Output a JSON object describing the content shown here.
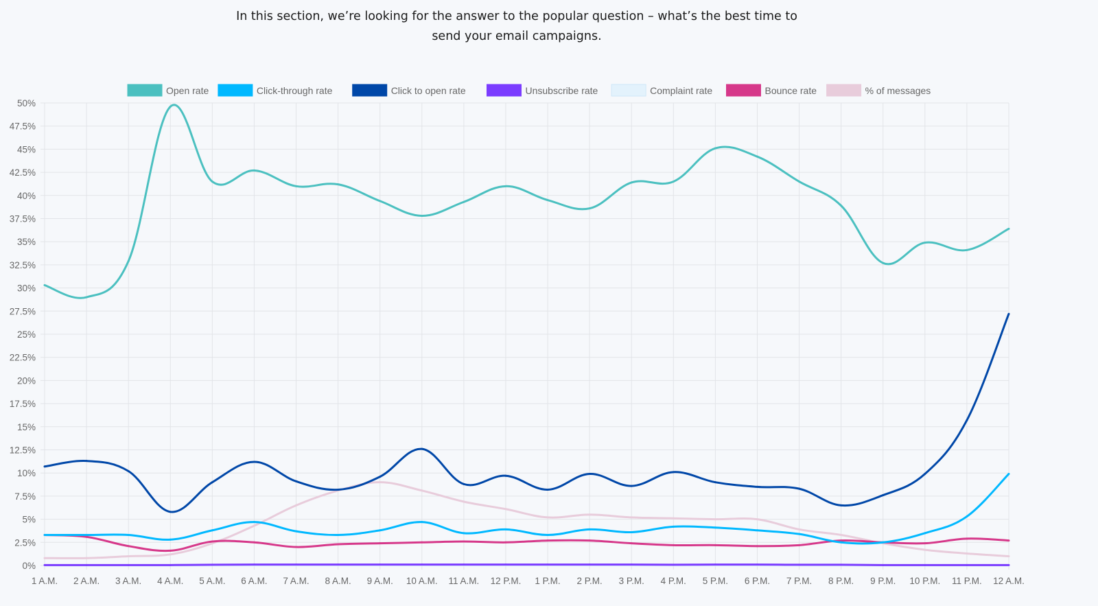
{
  "intro": {
    "line1": "In this section, we’re looking for the answer to the popular question – what’s the best time to",
    "line2": "send your email campaigns."
  },
  "chart_data": {
    "type": "line",
    "title": "",
    "xlabel": "",
    "ylabel": "",
    "ylim": [
      0,
      50
    ],
    "grid": true,
    "legend_position": "top-center",
    "yticks": [
      "0%",
      "2.5%",
      "5%",
      "7.5%",
      "10%",
      "12.5%",
      "15%",
      "17.5%",
      "20%",
      "22.5%",
      "25%",
      "27.5%",
      "30%",
      "32.5%",
      "35%",
      "37.5%",
      "40%",
      "42.5%",
      "45%",
      "47.5%",
      "50%"
    ],
    "x": [
      "1 A.M.",
      "2 A.M.",
      "3 A.M.",
      "4 A.M.",
      "5 A.M.",
      "6 A.M.",
      "7 A.M.",
      "8 A.M.",
      "9 A.M.",
      "10 A.M.",
      "11 A.M.",
      "12 P.M.",
      "1 P.M.",
      "2 P.M.",
      "3 P.M.",
      "4 P.M.",
      "5 P.M.",
      "6 P.M.",
      "7 P.M.",
      "8 P.M.",
      "9 P.M.",
      "10 P.M.",
      "11 P.M.",
      "12 A.M."
    ],
    "series": [
      {
        "name": "Open rate",
        "color": "#4bc0c0",
        "values": [
          30.3,
          29.0,
          32.9,
          49.6,
          41.5,
          42.7,
          41.0,
          41.2,
          39.4,
          37.8,
          39.3,
          41.0,
          39.5,
          38.6,
          41.4,
          41.5,
          45.1,
          44.2,
          41.5,
          38.9,
          32.7,
          34.9,
          34.1,
          36.4
        ]
      },
      {
        "name": "Click-through rate",
        "color": "#00b8ff",
        "values": [
          3.3,
          3.3,
          3.3,
          2.8,
          3.8,
          4.7,
          3.7,
          3.3,
          3.8,
          4.7,
          3.5,
          3.9,
          3.3,
          3.9,
          3.6,
          4.2,
          4.1,
          3.8,
          3.4,
          2.5,
          2.5,
          3.5,
          5.3,
          9.9
        ]
      },
      {
        "name": "Click to open rate",
        "color": "#0047a8",
        "values": [
          10.7,
          11.3,
          10.2,
          5.8,
          9.0,
          11.2,
          9.1,
          8.2,
          9.6,
          12.6,
          8.8,
          9.7,
          8.2,
          9.9,
          8.6,
          10.1,
          9.0,
          8.5,
          8.3,
          6.5,
          7.6,
          9.9,
          15.7,
          27.2
        ]
      },
      {
        "name": "Unsubscribe rate",
        "color": "#7b3cff",
        "values": [
          0.05,
          0.05,
          0.05,
          0.05,
          0.08,
          0.1,
          0.1,
          0.1,
          0.1,
          0.1,
          0.1,
          0.1,
          0.1,
          0.1,
          0.1,
          0.08,
          0.1,
          0.1,
          0.08,
          0.08,
          0.05,
          0.05,
          0.05,
          0.05
        ]
      },
      {
        "name": "Complaint rate",
        "color": "#e3f2fc",
        "values": [
          0.01,
          0.01,
          0.01,
          0.01,
          0.01,
          0.01,
          0.01,
          0.01,
          0.01,
          0.01,
          0.01,
          0.01,
          0.01,
          0.01,
          0.01,
          0.01,
          0.01,
          0.01,
          0.01,
          0.01,
          0.01,
          0.01,
          0.01,
          0.01
        ]
      },
      {
        "name": "Bounce rate",
        "color": "#d6388a",
        "values": [
          3.3,
          3.1,
          2.1,
          1.6,
          2.6,
          2.5,
          2.0,
          2.3,
          2.4,
          2.5,
          2.6,
          2.5,
          2.7,
          2.7,
          2.4,
          2.2,
          2.2,
          2.1,
          2.2,
          2.7,
          2.5,
          2.4,
          2.9,
          2.7
        ]
      },
      {
        "name": "% of messages",
        "color": "#e8ccdb",
        "values": [
          0.8,
          0.8,
          1.0,
          1.2,
          2.4,
          4.3,
          6.5,
          8.1,
          9.0,
          8.1,
          6.9,
          6.1,
          5.2,
          5.5,
          5.2,
          5.1,
          5.0,
          5.0,
          3.9,
          3.3,
          2.4,
          1.7,
          1.3,
          1.0
        ]
      }
    ]
  }
}
